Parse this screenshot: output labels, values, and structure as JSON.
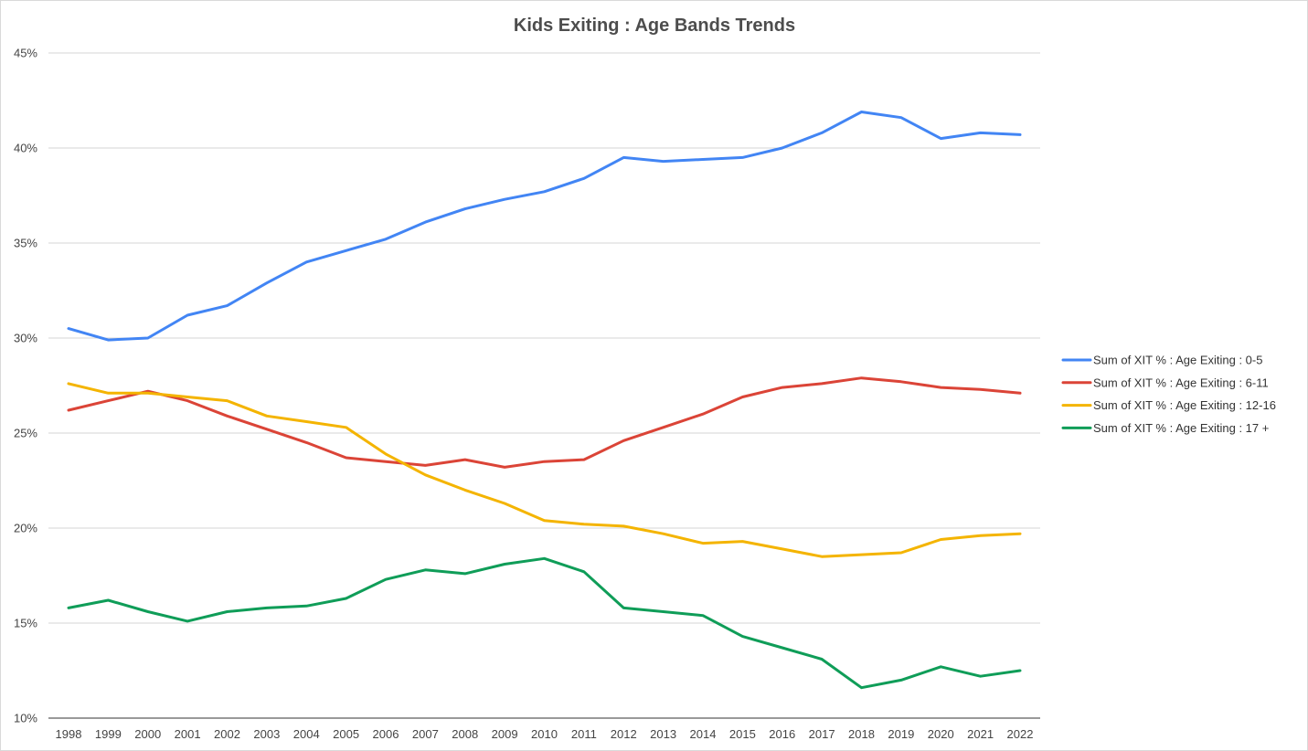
{
  "chart_data": {
    "type": "line",
    "title": "Kids Exiting : Age Bands Trends",
    "xlabel": "",
    "ylabel": "",
    "ylim": [
      10,
      45
    ],
    "y_ticks": [
      "10%",
      "15%",
      "20%",
      "25%",
      "30%",
      "35%",
      "40%",
      "45%"
    ],
    "y_tick_values": [
      10,
      15,
      20,
      25,
      30,
      35,
      40,
      45
    ],
    "grid": true,
    "legend_position": "right",
    "categories": [
      "1998",
      "1999",
      "2000",
      "2001",
      "2002",
      "2003",
      "2004",
      "2005",
      "2006",
      "2007",
      "2008",
      "2009",
      "2010",
      "2011",
      "2012",
      "2013",
      "2014",
      "2015",
      "2016",
      "2017",
      "2018",
      "2019",
      "2020",
      "2021",
      "2022"
    ],
    "series": [
      {
        "name": "Sum of XIT % : Age Exiting : 0-5",
        "color": "#4285f4",
        "values": [
          30.5,
          29.9,
          30.0,
          31.2,
          31.7,
          32.9,
          34.0,
          34.6,
          35.2,
          36.1,
          36.8,
          37.3,
          37.7,
          38.4,
          39.5,
          39.3,
          39.4,
          39.5,
          40.0,
          40.8,
          41.9,
          41.6,
          40.5,
          40.8,
          40.7
        ]
      },
      {
        "name": "Sum of XIT % : Age Exiting : 6-11",
        "color": "#db4437",
        "values": [
          26.2,
          26.7,
          27.2,
          26.7,
          25.9,
          25.2,
          24.5,
          23.7,
          23.5,
          23.3,
          23.6,
          23.2,
          23.5,
          23.6,
          24.6,
          25.3,
          26.0,
          26.9,
          27.4,
          27.6,
          27.9,
          27.7,
          27.4,
          27.3,
          27.1
        ]
      },
      {
        "name": "Sum of XIT % : Age Exiting : 12-16",
        "color": "#f4b400",
        "values": [
          27.6,
          27.1,
          27.1,
          26.9,
          26.7,
          25.9,
          25.6,
          25.3,
          23.9,
          22.8,
          22.0,
          21.3,
          20.4,
          20.2,
          20.1,
          19.7,
          19.2,
          19.3,
          18.9,
          18.5,
          18.6,
          18.7,
          19.4,
          19.6,
          19.7
        ]
      },
      {
        "name": "Sum of XIT % : Age Exiting : 17 +",
        "color": "#0f9d58",
        "values": [
          15.8,
          16.2,
          15.6,
          15.1,
          15.6,
          15.8,
          15.9,
          16.3,
          17.3,
          17.8,
          17.6,
          18.1,
          18.4,
          17.7,
          15.8,
          15.6,
          15.4,
          14.3,
          13.7,
          13.1,
          11.6,
          12.0,
          12.7,
          12.2,
          12.5
        ]
      }
    ]
  }
}
